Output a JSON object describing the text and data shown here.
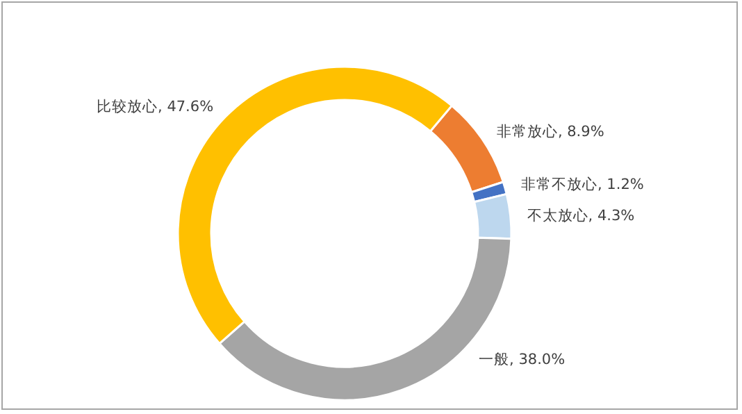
{
  "chart_data": {
    "type": "donut",
    "categories": [
      "非常放心",
      "非常不放心",
      "不太放心",
      "一般",
      "比较放心"
    ],
    "values": [
      8.9,
      1.2,
      4.3,
      38.0,
      47.6
    ],
    "value_labels": [
      "8.9%",
      "1.2%",
      "4.3%",
      "38.0%",
      "47.6%"
    ],
    "colors": [
      "#ed7d31",
      "#4472c4",
      "#bdd7ee",
      "#a5a5a5",
      "#ffc000"
    ],
    "legend": false
  }
}
